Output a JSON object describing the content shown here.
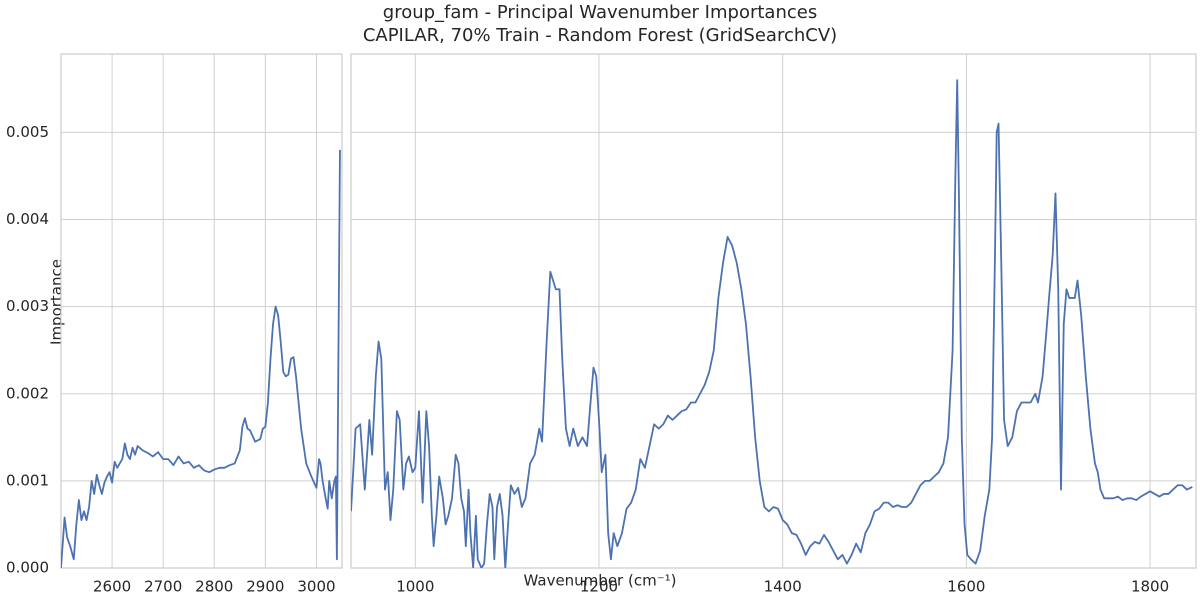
{
  "chart_data": [
    {
      "type": "line",
      "title": "group_fam - Principal Wavenumber Importances",
      "subtitle": "CAPILAR, 70% Train - Random Forest (GridSearchCV)",
      "ylabel": "Importance",
      "color": "#4c72b0",
      "grid": true,
      "xlim": [
        2500,
        3050
      ],
      "xticks": [
        2600,
        2700,
        2800,
        2900,
        3000
      ],
      "ylim": [
        0,
        0.0059
      ],
      "yticks": [
        {
          "value": 0,
          "label": "0.000"
        },
        0.001,
        0.002,
        0.003,
        0.004,
        0.005
      ],
      "x": [
        2500,
        2507,
        2512,
        2518,
        2525,
        2530,
        2535,
        2540,
        2545,
        2550,
        2555,
        2560,
        2565,
        2570,
        2575,
        2580,
        2585,
        2590,
        2595,
        2600,
        2605,
        2610,
        2615,
        2620,
        2625,
        2630,
        2635,
        2640,
        2645,
        2650,
        2660,
        2670,
        2680,
        2690,
        2700,
        2710,
        2720,
        2730,
        2740,
        2750,
        2760,
        2770,
        2780,
        2790,
        2800,
        2810,
        2820,
        2830,
        2840,
        2850,
        2855,
        2860,
        2865,
        2870,
        2880,
        2890,
        2895,
        2900,
        2905,
        2910,
        2915,
        2920,
        2925,
        2930,
        2935,
        2940,
        2945,
        2950,
        2955,
        2960,
        2965,
        2970,
        2975,
        2980,
        2990,
        3000,
        3005,
        3008,
        3012,
        3018,
        3022,
        3025,
        3030,
        3035,
        3038,
        3040,
        3046
      ],
      "values": [
        0,
        0.00058,
        0.00035,
        0.00025,
        0.0001,
        0.0005,
        0.00078,
        0.00055,
        0.00065,
        0.00055,
        0.0007,
        0.001,
        0.00085,
        0.00107,
        0.00095,
        0.00085,
        0.00098,
        0.00105,
        0.0011,
        0.00098,
        0.00122,
        0.00115,
        0.0012,
        0.00125,
        0.00143,
        0.0013,
        0.00125,
        0.00138,
        0.0013,
        0.0014,
        0.00135,
        0.00132,
        0.00128,
        0.00133,
        0.00125,
        0.00125,
        0.00118,
        0.00128,
        0.0012,
        0.00122,
        0.00115,
        0.00118,
        0.00112,
        0.0011,
        0.00113,
        0.00115,
        0.00115,
        0.00118,
        0.0012,
        0.00135,
        0.00162,
        0.00172,
        0.0016,
        0.00158,
        0.00145,
        0.00148,
        0.0016,
        0.00162,
        0.0019,
        0.0024,
        0.0028,
        0.003,
        0.0029,
        0.0026,
        0.00225,
        0.0022,
        0.00222,
        0.0024,
        0.00242,
        0.0022,
        0.0019,
        0.0016,
        0.0014,
        0.0012,
        0.00105,
        0.00092,
        0.00125,
        0.0012,
        0.001,
        0.0008,
        0.00068,
        0.001,
        0.0008,
        0.001,
        0.00105,
        0.0001,
        0.0048
      ]
    },
    {
      "type": "line",
      "xlabel": "Wavenumber (cm⁻¹)",
      "color": "#4c72b0",
      "grid": true,
      "xlim": [
        930,
        1850
      ],
      "xticks": [
        1000,
        1200,
        1400,
        1600,
        1800
      ],
      "ylim": [
        0,
        0.0059
      ],
      "x": [
        930,
        935,
        940,
        945,
        950,
        953,
        957,
        960,
        963,
        967,
        970,
        973,
        976,
        980,
        983,
        987,
        990,
        993,
        997,
        1000,
        1004,
        1008,
        1012,
        1015,
        1018,
        1020,
        1023,
        1026,
        1030,
        1033,
        1036,
        1040,
        1044,
        1047,
        1050,
        1053,
        1055,
        1058,
        1060,
        1063,
        1066,
        1068,
        1072,
        1075,
        1078,
        1081,
        1084,
        1086,
        1089,
        1092,
        1095,
        1098,
        1101,
        1104,
        1108,
        1112,
        1116,
        1120,
        1125,
        1130,
        1135,
        1138,
        1143,
        1147,
        1150,
        1153,
        1157,
        1160,
        1164,
        1168,
        1172,
        1177,
        1182,
        1187,
        1190,
        1194,
        1197,
        1200,
        1203,
        1207,
        1210,
        1213,
        1216,
        1220,
        1225,
        1230,
        1235,
        1240,
        1245,
        1250,
        1255,
        1260,
        1265,
        1270,
        1275,
        1280,
        1285,
        1290,
        1295,
        1300,
        1305,
        1310,
        1315,
        1320,
        1325,
        1330,
        1335,
        1340,
        1345,
        1350,
        1355,
        1360,
        1365,
        1370,
        1375,
        1380,
        1385,
        1390,
        1395,
        1400,
        1405,
        1410,
        1415,
        1420,
        1425,
        1430,
        1435,
        1440,
        1445,
        1450,
        1455,
        1460,
        1465,
        1470,
        1475,
        1480,
        1485,
        1490,
        1495,
        1500,
        1505,
        1510,
        1515,
        1520,
        1525,
        1530,
        1535,
        1540,
        1545,
        1550,
        1555,
        1560,
        1565,
        1570,
        1575,
        1580,
        1585,
        1588,
        1590,
        1592,
        1595,
        1598,
        1601,
        1605,
        1610,
        1615,
        1620,
        1625,
        1628,
        1631,
        1633,
        1635,
        1638,
        1641,
        1645,
        1650,
        1655,
        1660,
        1665,
        1670,
        1675,
        1678,
        1683,
        1687,
        1690,
        1694,
        1697,
        1700,
        1703,
        1706,
        1709,
        1712,
        1715,
        1718,
        1721,
        1725,
        1730,
        1735,
        1740,
        1743,
        1746,
        1750,
        1755,
        1760,
        1765,
        1770,
        1775,
        1780,
        1785,
        1790,
        1795,
        1800,
        1805,
        1810,
        1815,
        1820,
        1825,
        1830,
        1835,
        1840,
        1846
      ],
      "values": [
        0.00065,
        0.0016,
        0.00165,
        0.0009,
        0.0017,
        0.0013,
        0.0022,
        0.0026,
        0.0024,
        0.0009,
        0.0011,
        0.00055,
        0.0009,
        0.0018,
        0.0017,
        0.0009,
        0.0012,
        0.00128,
        0.0011,
        0.00115,
        0.0018,
        0.00075,
        0.0018,
        0.0014,
        0.0006,
        0.00025,
        0.0006,
        0.00105,
        0.0008,
        0.0005,
        0.0006,
        0.0008,
        0.0013,
        0.0012,
        0.0008,
        0.00065,
        0.00025,
        0.0009,
        0.0004,
        0,
        0.0006,
        0.0001,
        0,
        5e-05,
        0.0005,
        0.00085,
        0.0007,
        0.0001,
        0.0007,
        0.00085,
        0.0006,
        0,
        0.0005,
        0.00095,
        0.00085,
        0.00092,
        0.0007,
        0.0008,
        0.0012,
        0.0013,
        0.0016,
        0.00145,
        0.0026,
        0.0034,
        0.0033,
        0.0032,
        0.0032,
        0.0024,
        0.0016,
        0.0014,
        0.0016,
        0.0014,
        0.0015,
        0.0014,
        0.0018,
        0.0023,
        0.0022,
        0.0017,
        0.0011,
        0.0013,
        0.0004,
        0.0001,
        0.0004,
        0.00025,
        0.0004,
        0.00068,
        0.00075,
        0.0009,
        0.00125,
        0.00115,
        0.0014,
        0.00165,
        0.0016,
        0.00165,
        0.00175,
        0.0017,
        0.00175,
        0.0018,
        0.00182,
        0.0019,
        0.0019,
        0.002,
        0.0021,
        0.00225,
        0.0025,
        0.0031,
        0.0035,
        0.0038,
        0.0037,
        0.0035,
        0.0032,
        0.0028,
        0.0022,
        0.0015,
        0.001,
        0.0007,
        0.00065,
        0.0007,
        0.00068,
        0.00055,
        0.0005,
        0.0004,
        0.00038,
        0.00028,
        0.00015,
        0.00025,
        0.0003,
        0.00028,
        0.00038,
        0.0003,
        0.0002,
        0.0001,
        0.00015,
        5e-05,
        0.00015,
        0.00028,
        0.00018,
        0.0004,
        0.0005,
        0.00065,
        0.00068,
        0.00075,
        0.00075,
        0.0007,
        0.00072,
        0.0007,
        0.0007,
        0.00075,
        0.00085,
        0.00095,
        0.001,
        0.001,
        0.00105,
        0.0011,
        0.0012,
        0.0015,
        0.0025,
        0.0045,
        0.0056,
        0.0042,
        0.0015,
        0.0005,
        0.00015,
        0.0001,
        5e-05,
        0.0002,
        0.0006,
        0.0009,
        0.0015,
        0.0035,
        0.005,
        0.0051,
        0.0035,
        0.0017,
        0.0014,
        0.0015,
        0.0018,
        0.0019,
        0.0019,
        0.0019,
        0.002,
        0.0019,
        0.0022,
        0.0027,
        0.0031,
        0.0036,
        0.0043,
        0.0032,
        0.0009,
        0.0028,
        0.0032,
        0.0031,
        0.0031,
        0.0031,
        0.0033,
        0.0029,
        0.0022,
        0.0016,
        0.0012,
        0.0011,
        0.0009,
        0.0008,
        0.0008,
        0.0008,
        0.00082,
        0.00078,
        0.0008,
        0.0008,
        0.00078,
        0.00082,
        0.00085,
        0.00088,
        0.00085,
        0.00082,
        0.00085,
        0.00085,
        0.0009,
        0.00095,
        0.00095,
        0.0009,
        0.00093
      ]
    }
  ]
}
